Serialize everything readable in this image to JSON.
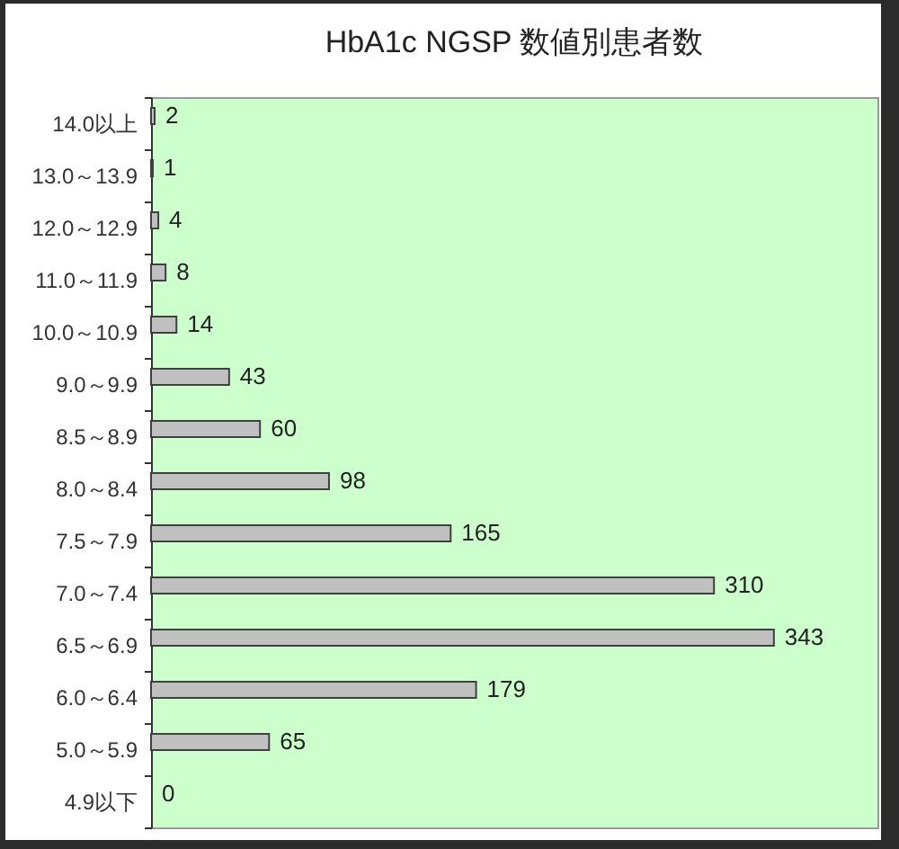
{
  "chart_data": {
    "type": "bar",
    "title": "HbA1c NGSP 数値別患者数",
    "orientation": "horizontal",
    "categories": [
      "14.0以上",
      "13.0～13.9",
      "12.0～12.9",
      "11.0～11.9",
      "10.0～10.9",
      "9.0～9.9",
      "8.5～8.9",
      "8.0～8.4",
      "7.5～7.9",
      "7.0～7.4",
      "6.5～6.9",
      "6.0～6.4",
      "5.0～5.9",
      "4.9以下"
    ],
    "values": [
      2,
      1,
      4,
      8,
      14,
      43,
      60,
      98,
      165,
      310,
      343,
      179,
      65,
      0
    ],
    "color": "#c0c0c0",
    "xlim": [
      0,
      400
    ],
    "data_labels": true,
    "tick_labels": "y"
  }
}
